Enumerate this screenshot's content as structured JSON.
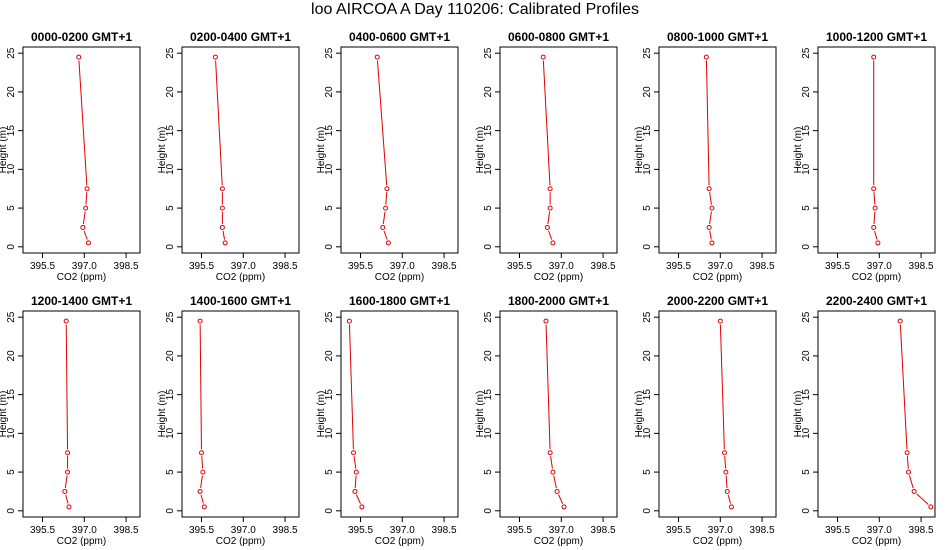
{
  "figure": {
    "title": "loo AIRCOA A  Day 110206: Calibrated Profiles",
    "line_color": "#e00000"
  },
  "chart_data": [
    {
      "type": "line",
      "title": "0000-0200 GMT+1",
      "xlabel": "CO2 (ppm)",
      "ylabel": "Height (m)",
      "xlim": [
        394.8,
        399.0
      ],
      "ylim": [
        -0.8,
        25.8
      ],
      "xticks": [
        395.5,
        397.0,
        398.5
      ],
      "xtick_labels": [
        "395.5",
        "397.0",
        "398.5"
      ],
      "yticks": [
        0,
        5,
        10,
        15,
        20,
        25
      ],
      "ytick_labels": [
        "0",
        "5",
        "10",
        "15",
        "20",
        "25"
      ],
      "series": [
        {
          "x": [
            397.15,
            396.95,
            397.05,
            397.1,
            396.8
          ],
          "y": [
            0.5,
            2.5,
            5,
            7.5,
            24.5
          ]
        }
      ]
    },
    {
      "type": "line",
      "title": "0200-0400 GMT+1",
      "xlabel": "CO2 (ppm)",
      "ylabel": "Height (m)",
      "xlim": [
        394.8,
        399.0
      ],
      "ylim": [
        -0.8,
        25.8
      ],
      "xticks": [
        395.5,
        397.0,
        398.5
      ],
      "xtick_labels": [
        "395.5",
        "397.0",
        "398.5"
      ],
      "yticks": [
        0,
        5,
        10,
        15,
        20,
        25
      ],
      "ytick_labels": [
        "0",
        "5",
        "10",
        "15",
        "20",
        "25"
      ],
      "series": [
        {
          "x": [
            396.35,
            396.25,
            396.25,
            396.25,
            396.0
          ],
          "y": [
            0.5,
            2.5,
            5,
            7.5,
            24.5
          ]
        }
      ]
    },
    {
      "type": "line",
      "title": "0400-0600 GMT+1",
      "xlabel": "CO2 (ppm)",
      "ylabel": "Height (m)",
      "xlim": [
        394.8,
        399.0
      ],
      "ylim": [
        -0.8,
        25.8
      ],
      "xticks": [
        395.5,
        397.0,
        398.5
      ],
      "xtick_labels": [
        "395.5",
        "397.0",
        "398.5"
      ],
      "yticks": [
        0,
        5,
        10,
        15,
        20,
        25
      ],
      "ytick_labels": [
        "0",
        "5",
        "10",
        "15",
        "20",
        "25"
      ],
      "series": [
        {
          "x": [
            396.5,
            396.3,
            396.4,
            396.45,
            396.1
          ],
          "y": [
            0.5,
            2.5,
            5,
            7.5,
            24.5
          ]
        }
      ]
    },
    {
      "type": "line",
      "title": "0600-0800 GMT+1",
      "xlabel": "CO2 (ppm)",
      "ylabel": "Height (m)",
      "xlim": [
        394.8,
        399.0
      ],
      "ylim": [
        -0.8,
        25.8
      ],
      "xticks": [
        395.5,
        397.0,
        398.5
      ],
      "xtick_labels": [
        "395.5",
        "397.0",
        "398.5"
      ],
      "yticks": [
        0,
        5,
        10,
        15,
        20,
        25
      ],
      "ytick_labels": [
        "0",
        "5",
        "10",
        "15",
        "20",
        "25"
      ],
      "series": [
        {
          "x": [
            396.7,
            396.5,
            396.6,
            396.6,
            396.35
          ],
          "y": [
            0.5,
            2.5,
            5,
            7.5,
            24.5
          ]
        }
      ]
    },
    {
      "type": "line",
      "title": "0800-1000 GMT+1",
      "xlabel": "CO2 (ppm)",
      "ylabel": "Height (m)",
      "xlim": [
        394.8,
        399.0
      ],
      "ylim": [
        -0.8,
        25.8
      ],
      "xticks": [
        395.5,
        397.0,
        398.5
      ],
      "xtick_labels": [
        "395.5",
        "397.0",
        "398.5"
      ],
      "yticks": [
        0,
        5,
        10,
        15,
        20,
        25
      ],
      "ytick_labels": [
        "0",
        "5",
        "10",
        "15",
        "20",
        "25"
      ],
      "series": [
        {
          "x": [
            396.7,
            396.6,
            396.7,
            396.6,
            396.5
          ],
          "y": [
            0.5,
            2.5,
            5,
            7.5,
            24.5
          ]
        }
      ]
    },
    {
      "type": "line",
      "title": "1000-1200 GMT+1",
      "xlabel": "CO2 (ppm)",
      "ylabel": "Height (m)",
      "xlim": [
        394.8,
        399.0
      ],
      "ylim": [
        -0.8,
        25.8
      ],
      "xticks": [
        395.5,
        397.0,
        398.5
      ],
      "xtick_labels": [
        "395.5",
        "397.0",
        "398.5"
      ],
      "yticks": [
        0,
        5,
        10,
        15,
        20,
        25
      ],
      "ytick_labels": [
        "0",
        "5",
        "10",
        "15",
        "20",
        "25"
      ],
      "series": [
        {
          "x": [
            396.95,
            396.8,
            396.85,
            396.8,
            396.8
          ],
          "y": [
            0.5,
            2.5,
            5,
            7.5,
            24.5
          ]
        }
      ]
    },
    {
      "type": "line",
      "title": "1200-1400 GMT+1",
      "xlabel": "CO2 (ppm)",
      "ylabel": "Height (m)",
      "xlim": [
        394.8,
        399.0
      ],
      "ylim": [
        -0.8,
        25.8
      ],
      "xticks": [
        395.5,
        397.0,
        398.5
      ],
      "xtick_labels": [
        "395.5",
        "397.0",
        "398.5"
      ],
      "yticks": [
        0,
        5,
        10,
        15,
        20,
        25
      ],
      "ytick_labels": [
        "0",
        "5",
        "10",
        "15",
        "20",
        "25"
      ],
      "series": [
        {
          "x": [
            396.45,
            396.3,
            396.4,
            396.4,
            396.35
          ],
          "y": [
            0.5,
            2.5,
            5,
            7.5,
            24.5
          ]
        }
      ]
    },
    {
      "type": "line",
      "title": "1400-1600 GMT+1",
      "xlabel": "CO2 (ppm)",
      "ylabel": "Height (m)",
      "xlim": [
        394.8,
        399.0
      ],
      "ylim": [
        -0.8,
        25.8
      ],
      "xticks": [
        395.5,
        397.0,
        398.5
      ],
      "xtick_labels": [
        "395.5",
        "397.0",
        "398.5"
      ],
      "yticks": [
        0,
        5,
        10,
        15,
        20,
        25
      ],
      "ytick_labels": [
        "0",
        "5",
        "10",
        "15",
        "20",
        "25"
      ],
      "series": [
        {
          "x": [
            395.6,
            395.45,
            395.55,
            395.5,
            395.45
          ],
          "y": [
            0.5,
            2.5,
            5,
            7.5,
            24.5
          ]
        }
      ]
    },
    {
      "type": "line",
      "title": "1600-1800 GMT+1",
      "xlabel": "CO2 (ppm)",
      "ylabel": "Height (m)",
      "xlim": [
        394.8,
        399.0
      ],
      "ylim": [
        -0.8,
        25.8
      ],
      "xticks": [
        395.5,
        397.0,
        398.5
      ],
      "xtick_labels": [
        "395.5",
        "397.0",
        "398.5"
      ],
      "yticks": [
        0,
        5,
        10,
        15,
        20,
        25
      ],
      "ytick_labels": [
        "0",
        "5",
        "10",
        "15",
        "20",
        "25"
      ],
      "series": [
        {
          "x": [
            395.55,
            395.3,
            395.35,
            395.25,
            395.1
          ],
          "y": [
            0.5,
            2.5,
            5,
            7.5,
            24.5
          ]
        }
      ]
    },
    {
      "type": "line",
      "title": "1800-2000 GMT+1",
      "xlabel": "CO2 (ppm)",
      "ylabel": "Height (m)",
      "xlim": [
        394.8,
        399.0
      ],
      "ylim": [
        -0.8,
        25.8
      ],
      "xticks": [
        395.5,
        397.0,
        398.5
      ],
      "xtick_labels": [
        "395.5",
        "397.0",
        "398.5"
      ],
      "yticks": [
        0,
        5,
        10,
        15,
        20,
        25
      ],
      "ytick_labels": [
        "0",
        "5",
        "10",
        "15",
        "20",
        "25"
      ],
      "series": [
        {
          "x": [
            397.1,
            396.85,
            396.7,
            396.6,
            396.45
          ],
          "y": [
            0.5,
            2.5,
            5,
            7.5,
            24.5
          ]
        }
      ]
    },
    {
      "type": "line",
      "title": "2000-2200 GMT+1",
      "xlabel": "CO2 (ppm)",
      "ylabel": "Height (m)",
      "xlim": [
        394.8,
        399.0
      ],
      "ylim": [
        -0.8,
        25.8
      ],
      "xticks": [
        395.5,
        397.0,
        398.5
      ],
      "xtick_labels": [
        "395.5",
        "397.0",
        "398.5"
      ],
      "yticks": [
        0,
        5,
        10,
        15,
        20,
        25
      ],
      "ytick_labels": [
        "0",
        "5",
        "10",
        "15",
        "20",
        "25"
      ],
      "series": [
        {
          "x": [
            397.4,
            397.25,
            397.2,
            397.15,
            397.0
          ],
          "y": [
            0.5,
            2.5,
            5,
            7.5,
            24.5
          ]
        }
      ]
    },
    {
      "type": "line",
      "title": "2200-2400 GMT+1",
      "xlabel": "CO2 (ppm)",
      "ylabel": "Height (m)",
      "xlim": [
        394.8,
        399.0
      ],
      "ylim": [
        -0.8,
        25.8
      ],
      "xticks": [
        395.5,
        397.0,
        398.5
      ],
      "xtick_labels": [
        "395.5",
        "397.0",
        "398.5"
      ],
      "yticks": [
        0,
        5,
        10,
        15,
        20,
        25
      ],
      "ytick_labels": [
        "0",
        "5",
        "10",
        "15",
        "20",
        "25"
      ],
      "series": [
        {
          "x": [
            398.85,
            398.25,
            398.05,
            398.0,
            397.75
          ],
          "y": [
            0.5,
            2.5,
            5,
            7.5,
            24.5
          ]
        }
      ]
    }
  ]
}
